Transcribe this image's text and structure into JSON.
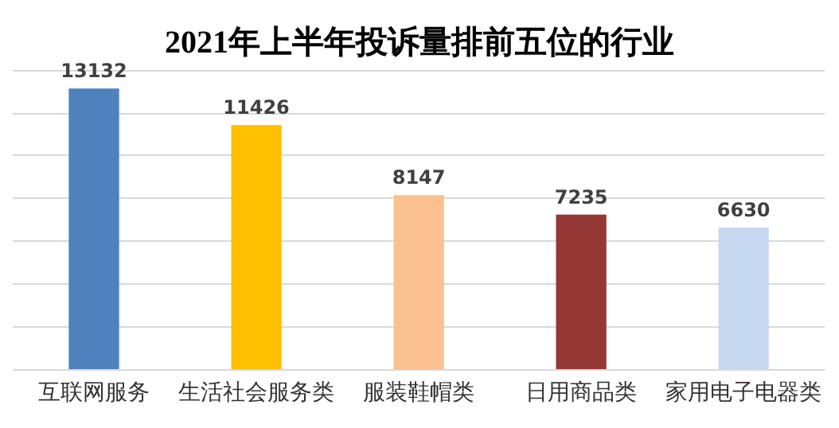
{
  "chart_data": {
    "type": "bar",
    "title": "2021年上半年投诉量排前五位的行业",
    "categories": [
      "互联网服务",
      "生活社会服务类",
      "服装鞋帽类",
      "日用商品类",
      "家用电子电器类"
    ],
    "values": [
      13132,
      11426,
      8147,
      7235,
      6630
    ],
    "colors": [
      "#4f81bd",
      "#ffc000",
      "#fac090",
      "#953735",
      "#c6d9f1"
    ],
    "ylim": [
      0,
      14000
    ],
    "yticks": [
      {
        "value": 0,
        "label": null
      },
      {
        "value": 2000,
        "label": null
      },
      {
        "value": 4000,
        "label": null
      },
      {
        "value": 6000,
        "label": null
      },
      {
        "value": 8000,
        "label": null
      },
      {
        "value": 10000,
        "label": null
      },
      {
        "value": 12000,
        "label": null
      },
      {
        "value": 14000,
        "label": null
      }
    ],
    "tick_labels": "x",
    "grid": "y",
    "data_labels": true
  }
}
